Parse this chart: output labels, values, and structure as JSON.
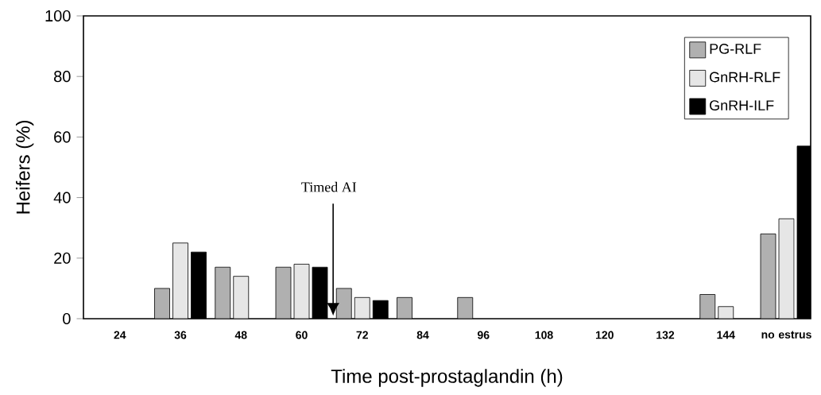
{
  "chart_data": {
    "type": "bar",
    "xlabel": "Time post-prostaglandin (h)",
    "ylabel": "Heifers (%)",
    "categories": [
      "24",
      "36",
      "48",
      "60",
      "72",
      "84",
      "96",
      "108",
      "120",
      "132",
      "144",
      "no estrus"
    ],
    "series": [
      {
        "name": "PG-RLF",
        "color": "#b0b0b0",
        "values": [
          0,
          10,
          17,
          17,
          10,
          7,
          7,
          0,
          0,
          0,
          8,
          28
        ]
      },
      {
        "name": "GnRH-RLF",
        "color": "#e6e6e6",
        "values": [
          0,
          25,
          14,
          18,
          7,
          0,
          0,
          0,
          0,
          0,
          4,
          33
        ]
      },
      {
        "name": "GnRH-ILF",
        "color": "#000000",
        "values": [
          0,
          22,
          0,
          17,
          6,
          0,
          0,
          0,
          0,
          0,
          0,
          57
        ]
      }
    ],
    "ylim": [
      0,
      100
    ],
    "yticks": [
      0,
      20,
      40,
      60,
      80,
      100
    ],
    "grid": false,
    "legend": "top right",
    "annotations": [
      "Timed AI"
    ]
  }
}
